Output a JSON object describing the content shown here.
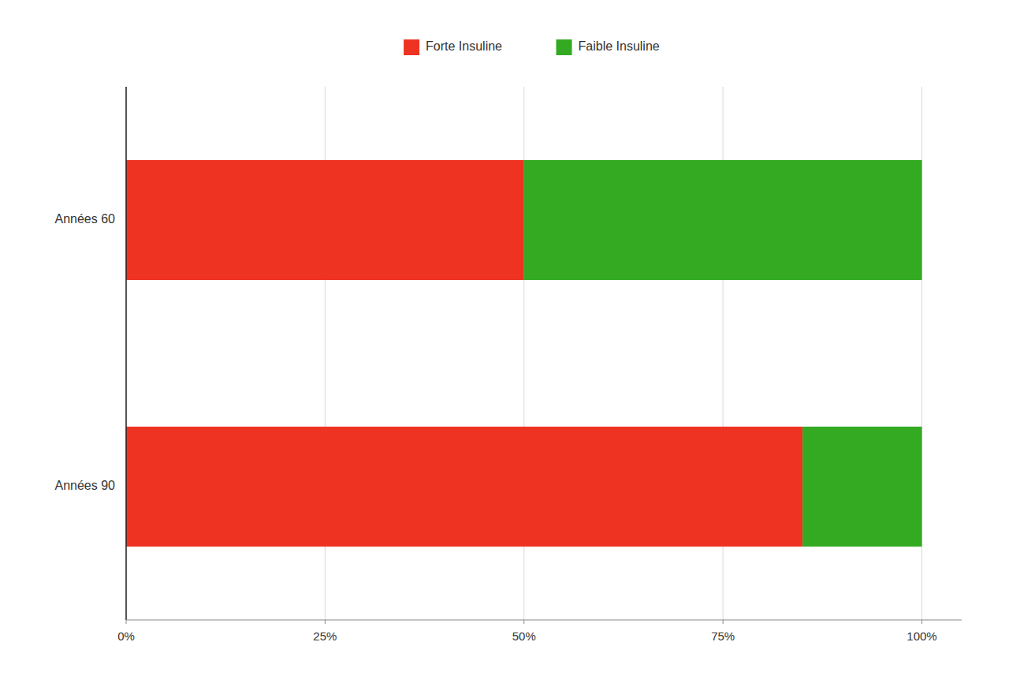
{
  "chart_data": {
    "type": "bar",
    "orientation": "horizontal",
    "stacked": true,
    "categories": [
      "Années 60",
      "Années 90"
    ],
    "series": [
      {
        "name": "Forte Insuline",
        "color": "#ee3322",
        "values": [
          50,
          85
        ]
      },
      {
        "name": "Faible Insuline",
        "color": "#33aa22",
        "values": [
          50,
          15
        ]
      }
    ],
    "xlim": [
      0,
      105
    ],
    "xticks": [
      {
        "value": 0,
        "label": "0%"
      },
      {
        "value": 25,
        "label": "25%"
      },
      {
        "value": 50,
        "label": "50%"
      },
      {
        "value": 75,
        "label": "75%"
      },
      {
        "value": 100,
        "label": "100%"
      }
    ],
    "grid": true,
    "legend": "top"
  }
}
